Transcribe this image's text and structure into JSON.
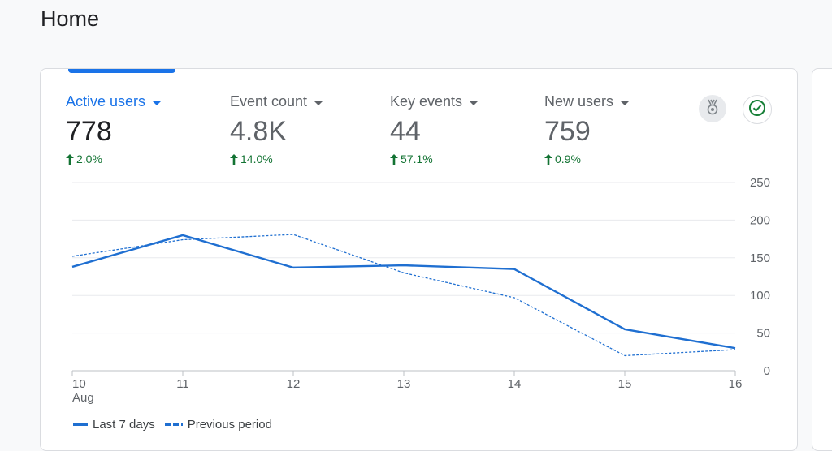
{
  "page": {
    "title": "Home"
  },
  "metrics": [
    {
      "label": "Active users",
      "value": "778",
      "change": "2.0%",
      "active": true
    },
    {
      "label": "Event count",
      "value": "4.8K",
      "change": "14.0%",
      "active": false
    },
    {
      "label": "Key events",
      "value": "44",
      "change": "57.1%",
      "active": false
    },
    {
      "label": "New users",
      "value": "759",
      "change": "0.9%",
      "active": false
    }
  ],
  "icons": {
    "medal": "medal-icon",
    "check": "check-circle-icon"
  },
  "colors": {
    "accent": "#1a73e8",
    "series": "#1f6fd1",
    "positive": "#137333"
  },
  "chart_data": {
    "type": "line",
    "categories": [
      "10",
      "11",
      "12",
      "13",
      "14",
      "15",
      "16"
    ],
    "x_sublabel": "Aug",
    "series": [
      {
        "name": "Last 7 days",
        "style": "solid",
        "values": [
          138,
          180,
          137,
          140,
          135,
          55,
          30
        ]
      },
      {
        "name": "Previous period",
        "style": "dashed",
        "values": [
          152,
          174,
          181,
          130,
          97,
          20,
          28
        ]
      }
    ],
    "ylim": [
      0,
      250
    ],
    "yticks": [
      0,
      50,
      100,
      150,
      200,
      250
    ],
    "grid": true,
    "legend": "bottom-left"
  }
}
